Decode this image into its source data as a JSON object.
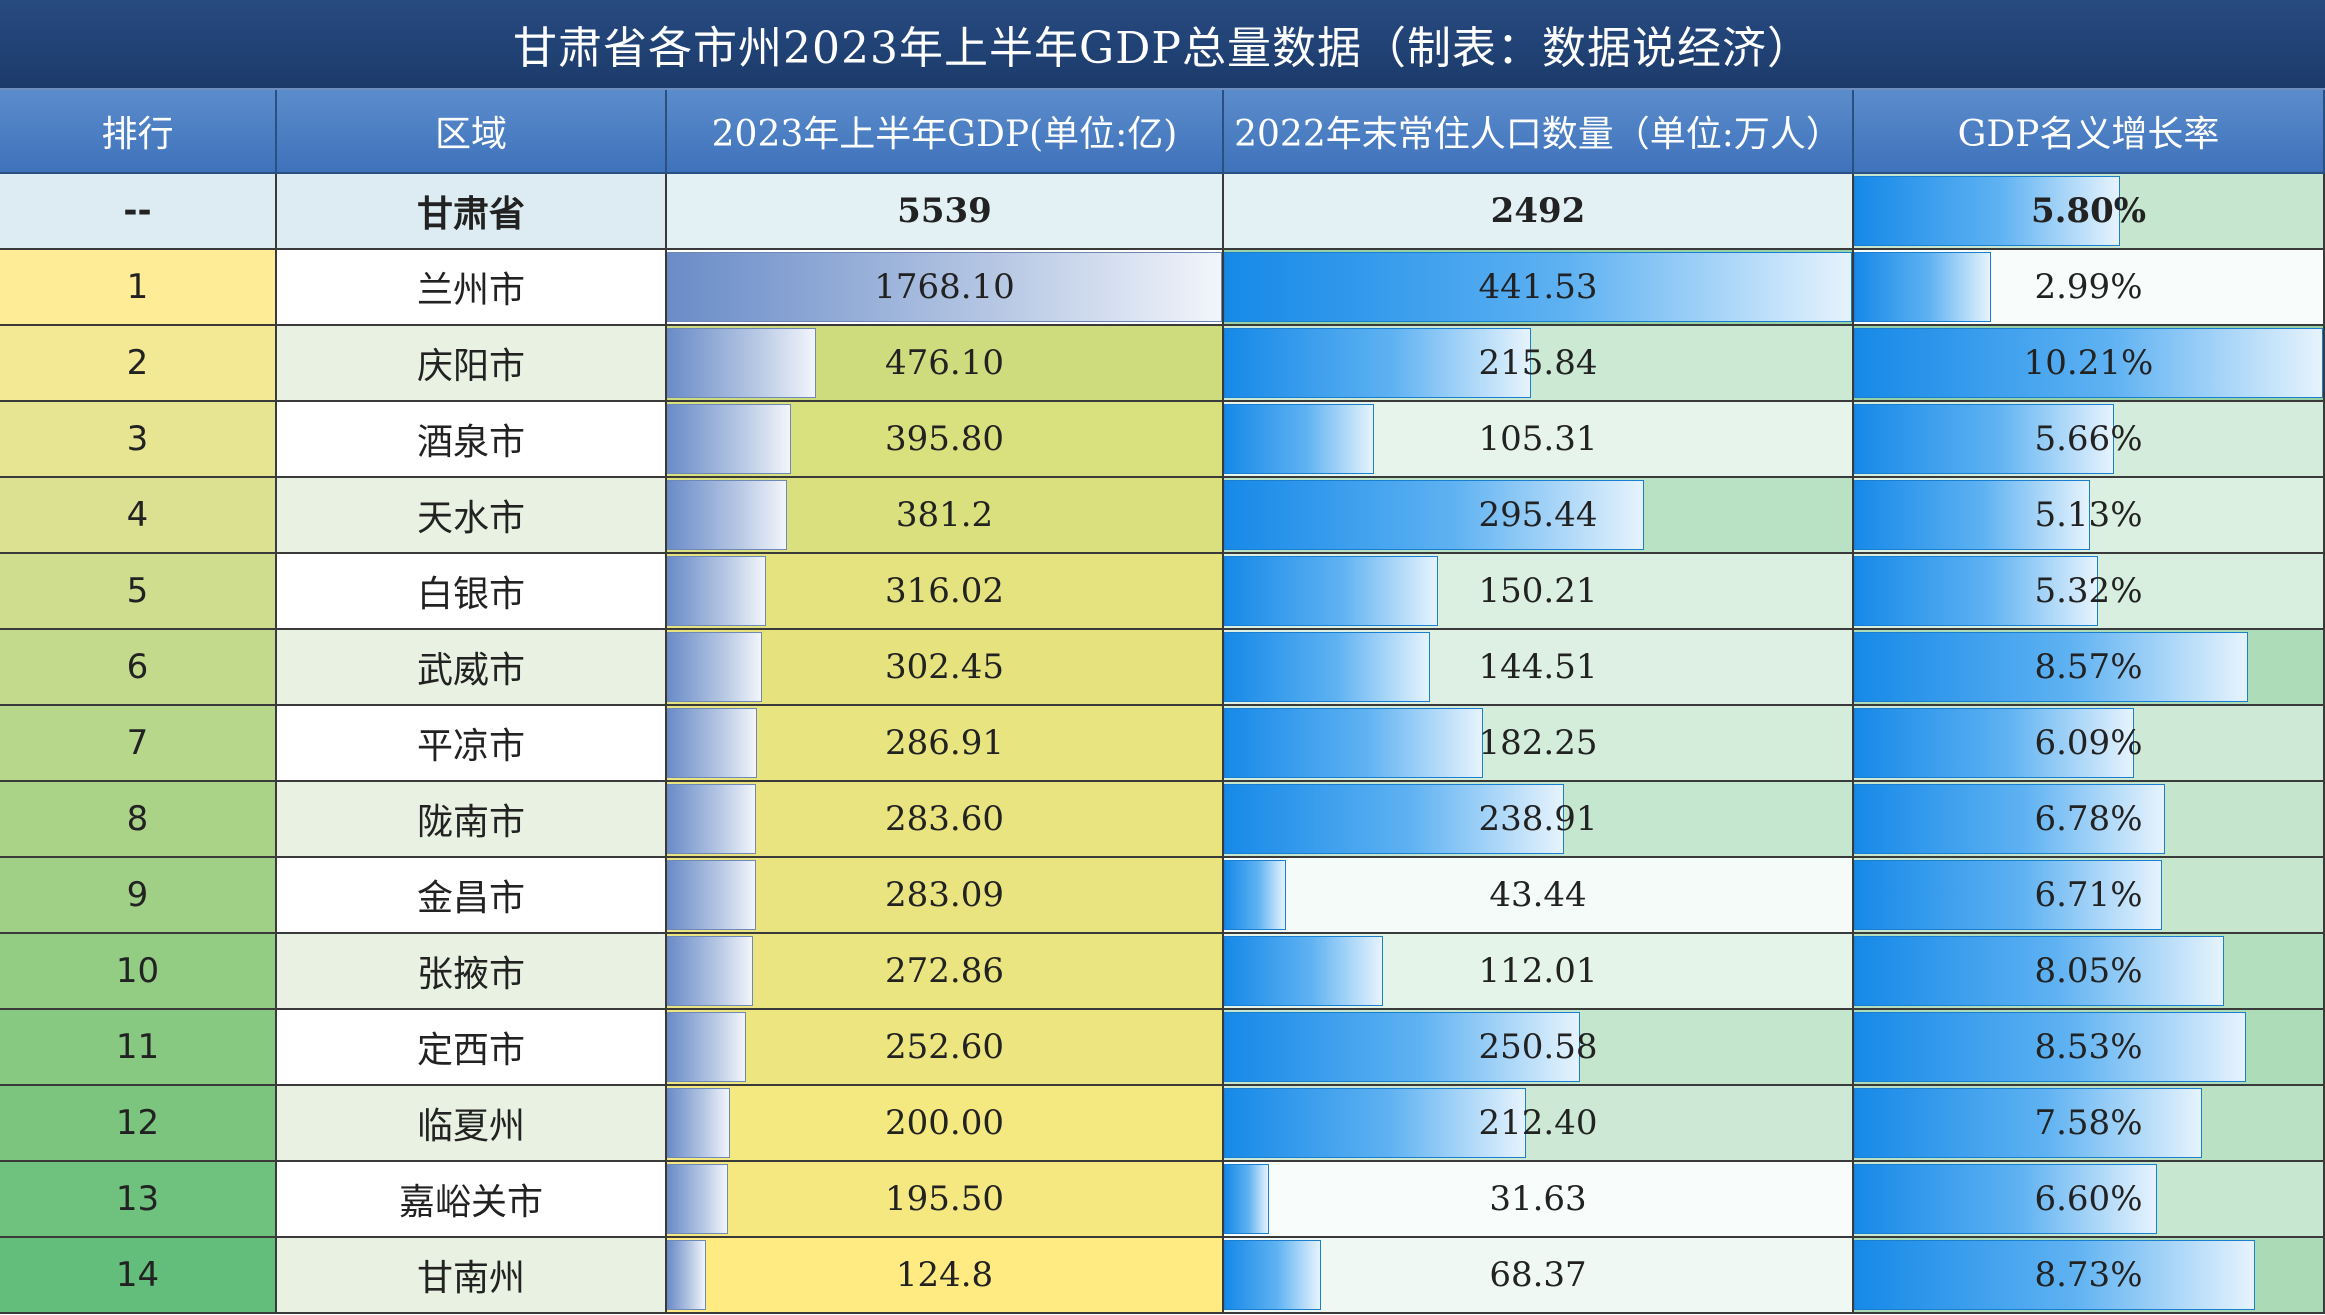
{
  "title": "甘肃省各市州2023年上半年GDP总量数据（制表：数据说经济）",
  "headers": [
    "排行",
    "区域",
    "2023年上半年GDP(单位:亿)",
    "2022年末常住人口数量（单位:万人）",
    "GDP名义增长率"
  ],
  "total": {
    "rank": "--",
    "region": "甘肃省",
    "gdp": "5539",
    "population": "2492",
    "growth": "5.80%"
  },
  "chart_data": {
    "type": "table",
    "columns": [
      "排行",
      "区域",
      "2023年上半年GDP(单位:亿)",
      "2022年末常住人口数量（单位:万人）",
      "GDP名义增长率"
    ],
    "rows": [
      {
        "rank": "1",
        "region": "兰州市",
        "gdp": "1768.10",
        "population": "441.53",
        "growth": "2.99%"
      },
      {
        "rank": "2",
        "region": "庆阳市",
        "gdp": "476.10",
        "population": "215.84",
        "growth": "10.21%"
      },
      {
        "rank": "3",
        "region": "酒泉市",
        "gdp": "395.80",
        "population": "105.31",
        "growth": "5.66%"
      },
      {
        "rank": "4",
        "region": "天水市",
        "gdp": "381.2",
        "population": "295.44",
        "growth": "5.13%"
      },
      {
        "rank": "5",
        "region": "白银市",
        "gdp": "316.02",
        "population": "150.21",
        "growth": "5.32%"
      },
      {
        "rank": "6",
        "region": "武威市",
        "gdp": "302.45",
        "population": "144.51",
        "growth": "8.57%"
      },
      {
        "rank": "7",
        "region": "平凉市",
        "gdp": "286.91",
        "population": "182.25",
        "growth": "6.09%"
      },
      {
        "rank": "8",
        "region": "陇南市",
        "gdp": "283.60",
        "population": "238.91",
        "growth": "6.78%"
      },
      {
        "rank": "9",
        "region": "金昌市",
        "gdp": "283.09",
        "population": "43.44",
        "growth": "6.71%"
      },
      {
        "rank": "10",
        "region": "张掖市",
        "gdp": "272.86",
        "population": "112.01",
        "growth": "8.05%"
      },
      {
        "rank": "11",
        "region": "定西市",
        "gdp": "252.60",
        "population": "250.58",
        "growth": "8.53%"
      },
      {
        "rank": "12",
        "region": "临夏州",
        "gdp": "200.00",
        "population": "212.40",
        "growth": "7.58%"
      },
      {
        "rank": "13",
        "region": "嘉峪关市",
        "gdp": "195.50",
        "population": "31.63",
        "growth": "6.60%"
      },
      {
        "rank": "14",
        "region": "甘南州",
        "gdp": "124.8",
        "population": "68.37",
        "growth": "8.73%"
      }
    ]
  }
}
